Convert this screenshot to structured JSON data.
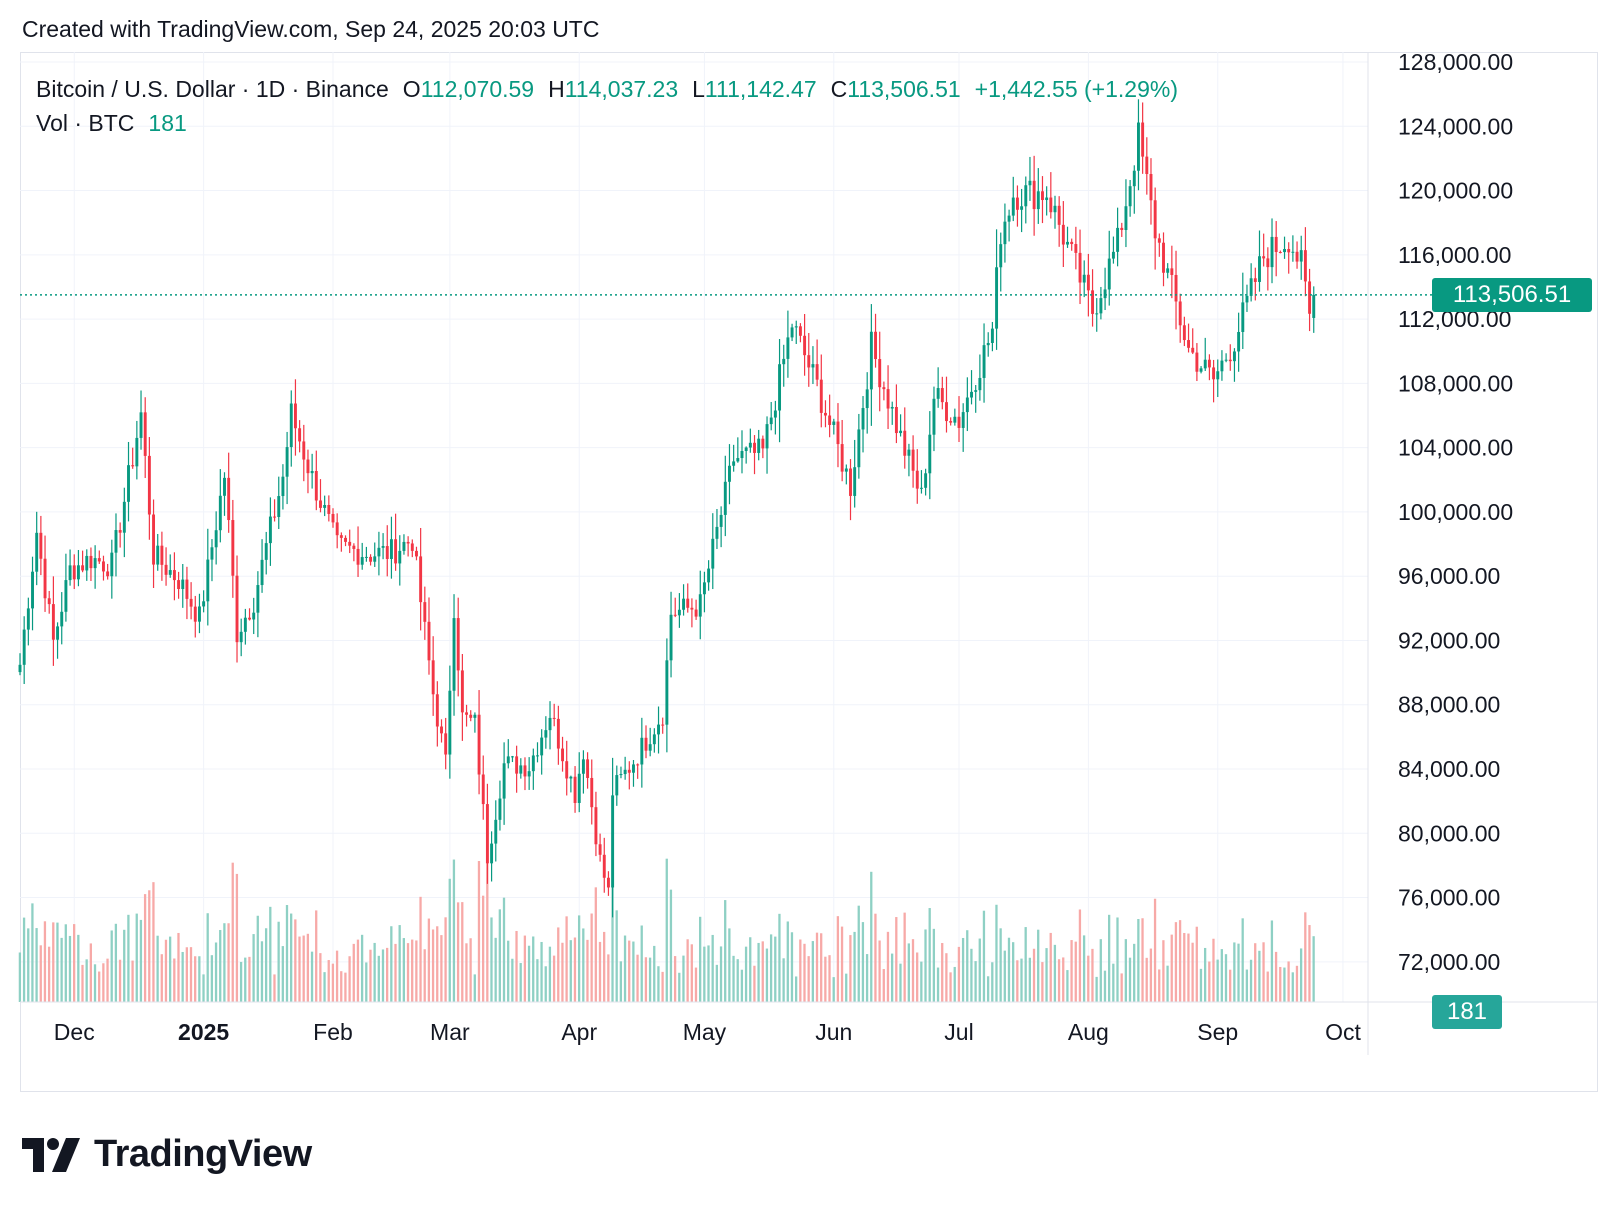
{
  "header": {
    "created": "Created with TradingView.com, Sep 24, 2025 20:03 UTC"
  },
  "legend": {
    "symbol": "Bitcoin / U.S. Dollar · 1D · Binance",
    "o_label": "O",
    "o_value": "112,070.59",
    "h_label": "H",
    "h_value": "114,037.23",
    "l_label": "L",
    "l_value": "111,142.47",
    "c_label": "C",
    "c_value": "113,506.51",
    "change": "+1,442.55 (+1.29%)",
    "vol_label": "Vol · BTC",
    "vol_value": "181"
  },
  "badges": {
    "last_price": "113,506.51",
    "last_volume": "181"
  },
  "colors": {
    "up": "#089981",
    "down": "#F23645",
    "up_volume": "#8ed0c4",
    "down_volume": "#f7a9a7",
    "price_line": "#089981",
    "grid": "#f0f3fa"
  },
  "logo": {
    "text": "TradingView"
  },
  "chart_data": {
    "type": "candlestick",
    "title": "Bitcoin / U.S. Dollar · 1D · Binance",
    "interval": "1D",
    "y_axis": {
      "position": "right",
      "ticks": [
        72000,
        76000,
        80000,
        84000,
        88000,
        92000,
        96000,
        100000,
        104000,
        108000,
        112000,
        116000,
        120000,
        124000,
        128000
      ],
      "tick_labels": [
        "72,000.00",
        "76,000.00",
        "80,000.00",
        "84,000.00",
        "88,000.00",
        "92,000.00",
        "96,000.00",
        "100,000.00",
        "104,000.00",
        "108,000.00",
        "112,000.00",
        "116,000.00",
        "120,000.00",
        "124,000.00",
        "128,000.00"
      ],
      "range": [
        69500,
        128000
      ]
    },
    "x_axis": {
      "tick_labels": [
        "Dec",
        "2025",
        "Feb",
        "Mar",
        "Apr",
        "May",
        "Jun",
        "Jul",
        "Aug",
        "Sep",
        "Oct"
      ],
      "tick_dates": [
        "2024-12-01",
        "2025-01-01",
        "2025-02-01",
        "2025-03-01",
        "2025-04-01",
        "2025-05-01",
        "2025-06-01",
        "2025-07-01",
        "2025-08-01",
        "2025-09-01",
        "2025-10-01"
      ],
      "range": [
        "2024-11-18",
        "2025-10-07"
      ]
    },
    "grid": true,
    "last_close": 113506.51,
    "close_path": [
      [
        "2024-11-18",
        90500
      ],
      [
        "2024-11-22",
        98800
      ],
      [
        "2024-11-26",
        91900
      ],
      [
        "2024-11-30",
        96400
      ],
      [
        "2024-12-05",
        97100
      ],
      [
        "2024-12-10",
        96700
      ],
      [
        "2024-12-17",
        106100
      ],
      [
        "2024-12-20",
        97300
      ],
      [
        "2024-12-26",
        95800
      ],
      [
        "2024-12-31",
        93400
      ],
      [
        "2025-01-06",
        102300
      ],
      [
        "2025-01-09",
        92500
      ],
      [
        "2025-01-13",
        94500
      ],
      [
        "2025-01-20",
        102200
      ],
      [
        "2025-01-22",
        106100
      ],
      [
        "2025-01-27",
        102100
      ],
      [
        "2025-02-02",
        97800
      ],
      [
        "2025-02-10",
        97400
      ],
      [
        "2025-02-15",
        97500
      ],
      [
        "2025-02-20",
        98300
      ],
      [
        "2025-02-25",
        88700
      ],
      [
        "2025-02-28",
        84300
      ],
      [
        "2025-03-02",
        94200
      ],
      [
        "2025-03-04",
        87200
      ],
      [
        "2025-03-07",
        86800
      ],
      [
        "2025-03-10",
        78600
      ],
      [
        "2025-03-14",
        84300
      ],
      [
        "2025-03-20",
        84200
      ],
      [
        "2025-03-25",
        87500
      ],
      [
        "2025-03-31",
        82500
      ],
      [
        "2025-04-02",
        85200
      ],
      [
        "2025-04-06",
        78300
      ],
      [
        "2025-04-08",
        76300
      ],
      [
        "2025-04-09",
        82600
      ],
      [
        "2025-04-14",
        84500
      ],
      [
        "2025-04-21",
        87500
      ],
      [
        "2025-04-23",
        93700
      ],
      [
        "2025-04-30",
        94200
      ],
      [
        "2025-05-08",
        103300
      ],
      [
        "2025-05-15",
        103700
      ],
      [
        "2025-05-22",
        111700
      ],
      [
        "2025-05-28",
        107800
      ],
      [
        "2025-06-05",
        101600
      ],
      [
        "2025-06-10",
        110300
      ],
      [
        "2025-06-17",
        104600
      ],
      [
        "2025-06-22",
        100900
      ],
      [
        "2025-06-25",
        107200
      ],
      [
        "2025-07-01",
        105700
      ],
      [
        "2025-07-09",
        111300
      ],
      [
        "2025-07-11",
        117500
      ],
      [
        "2025-07-14",
        119800
      ],
      [
        "2025-07-22",
        119900
      ],
      [
        "2025-08-02",
        112500
      ],
      [
        "2025-08-08",
        116700
      ],
      [
        "2025-08-13",
        123300
      ],
      [
        "2025-08-17",
        117500
      ],
      [
        "2025-08-25",
        110100
      ],
      [
        "2025-08-31",
        108200
      ],
      [
        "2025-09-05",
        110700
      ],
      [
        "2025-09-12",
        115900
      ],
      [
        "2025-09-18",
        117100
      ],
      [
        "2025-09-21",
        115300
      ],
      [
        "2025-09-23",
        112100
      ],
      [
        "2025-09-24",
        113506.51
      ]
    ],
    "volume": {
      "unit": "BTC",
      "last": 181
    }
  }
}
